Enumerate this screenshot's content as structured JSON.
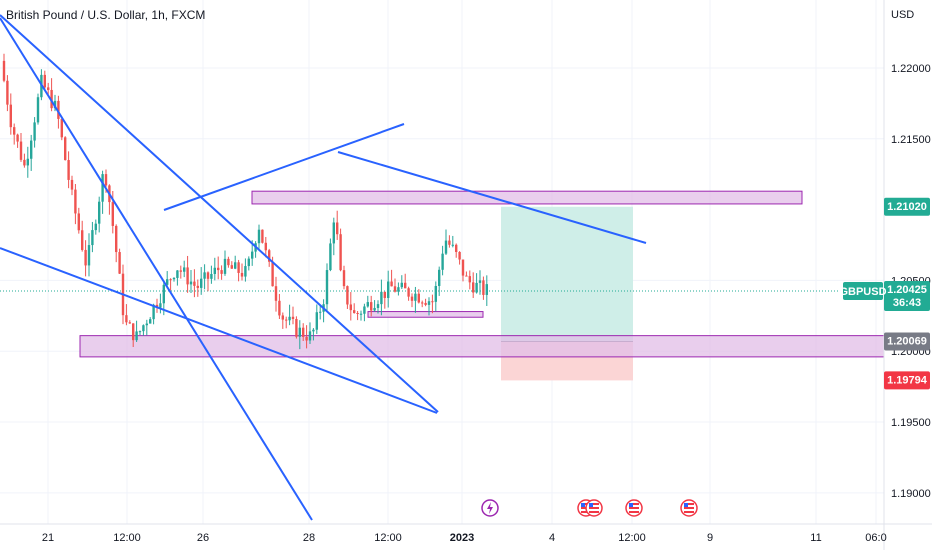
{
  "header": {
    "title": "British Pound / U.S. Dollar, 1h, FXCM"
  },
  "axis": {
    "currency": "USD"
  },
  "price_badges": {
    "target": "1.21020",
    "symbol": "GBPUSD",
    "last_price": "1.20425",
    "countdown": "36:43",
    "entry": "1.20069",
    "stop": "1.19794"
  },
  "colors": {
    "bull": "#26a69a",
    "bear": "#ef5350",
    "trendline": "#2962ff",
    "zone_fill": "#e1bee7",
    "zone_stroke": "#9c27b0",
    "profit_fill": "#cfeee8",
    "loss_fill": "#fbd5d5",
    "last_price_badge": "#22ab94",
    "stop_badge": "#f23645",
    "entry_badge": "#787b86"
  },
  "icons": [
    "lightning-event-icon",
    "us-flag-event-icon",
    "us-flag-event-icon",
    "us-flag-event-icon",
    "us-flag-event-icon"
  ],
  "chart_data": {
    "type": "candlestick",
    "title": "British Pound / U.S. Dollar, 1h, FXCM",
    "y_ticks": [
      "1.22000",
      "1.21500",
      "1.20500",
      "1.20000",
      "1.19500",
      "1.19000"
    ],
    "y_tick_values": [
      1.22,
      1.215,
      1.205,
      1.2,
      1.195,
      1.19
    ],
    "x_ticks": [
      "21",
      "12:00",
      "26",
      "28",
      "12:00",
      "2023",
      "4",
      "12:00",
      "9",
      "11",
      "06:0"
    ],
    "ylim": [
      1.1878,
      1.2248
    ],
    "grid": true,
    "last_price": 1.20425,
    "levels": {
      "target": 1.2102,
      "entry": 1.20069,
      "stop": 1.19794
    }
  }
}
